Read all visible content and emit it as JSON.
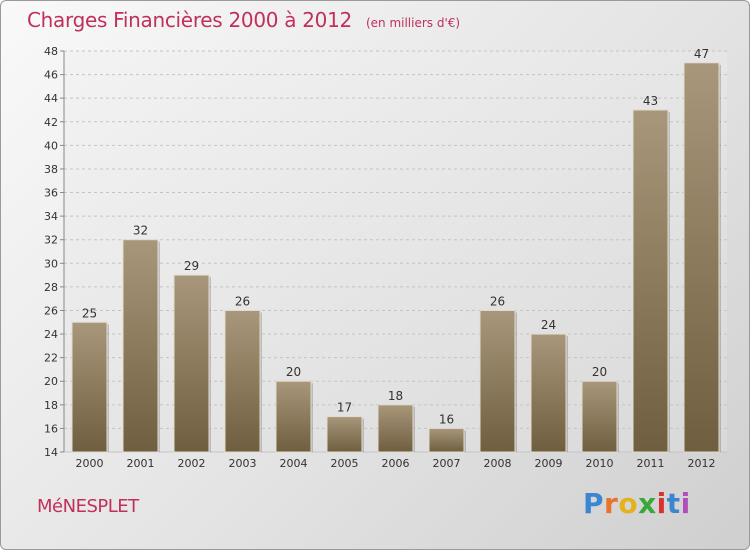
{
  "chart_data": {
    "type": "bar",
    "title": "Charges Financières 2000 à 2012",
    "subtitle": "(en milliers d'€)",
    "categories": [
      "2000",
      "2001",
      "2002",
      "2003",
      "2004",
      "2005",
      "2006",
      "2007",
      "2008",
      "2009",
      "2010",
      "2011",
      "2012"
    ],
    "values": [
      25,
      32,
      29,
      26,
      20,
      17,
      18,
      16,
      26,
      24,
      20,
      43,
      47
    ],
    "ylim": [
      14,
      48
    ],
    "yticks": [
      14,
      16,
      18,
      20,
      22,
      24,
      26,
      28,
      30,
      32,
      34,
      36,
      38,
      40,
      42,
      44,
      46,
      48
    ],
    "grid": true,
    "legend": "none",
    "bar_color": "#8b7858",
    "title_color": "#c0305a"
  },
  "footer": {
    "commune": "MéNESPLET",
    "logo_letters": [
      "P",
      "r",
      "o",
      "x",
      "i",
      "t",
      "i"
    ],
    "logo_colors": [
      "#3a86d1",
      "#e8732a",
      "#e5b21f",
      "#39a83a",
      "#d8322e",
      "#3a86d1",
      "#b04fb7"
    ]
  }
}
